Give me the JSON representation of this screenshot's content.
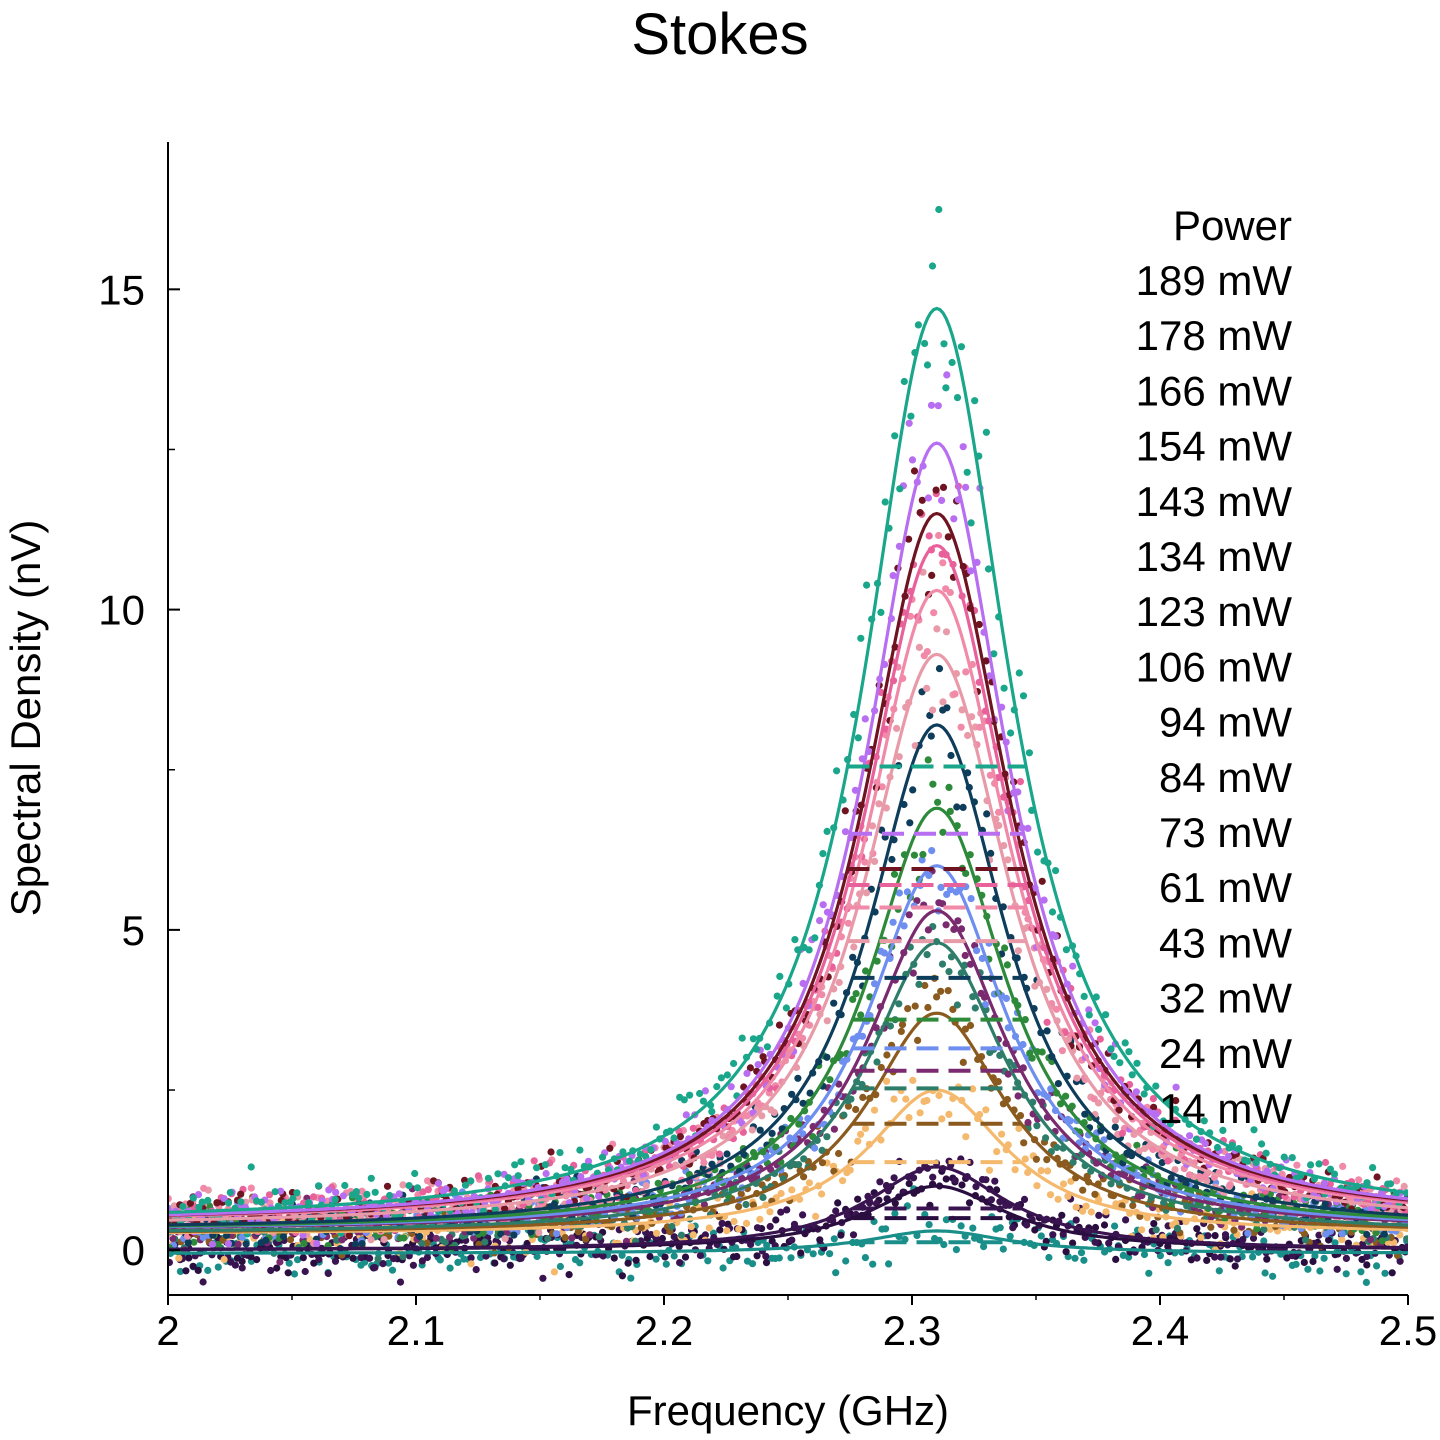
{
  "chart_data": {
    "type": "scatter",
    "title": "Stokes",
    "xlabel": "Frequency (GHz)",
    "ylabel": "Spectral Density (nV)",
    "xlim": [
      2.0,
      2.5
    ],
    "ylim": [
      -0.7,
      17.3
    ],
    "x_ticks": [
      2.0,
      2.1,
      2.2,
      2.3,
      2.4,
      2.5
    ],
    "x_tick_labels": [
      "2",
      "2.1",
      "2.2",
      "2.3",
      "2.4",
      "2.5"
    ],
    "y_ticks": [
      0,
      5,
      10,
      15
    ],
    "y_tick_labels": [
      "0",
      "5",
      "10",
      "15"
    ],
    "grid": false,
    "legend_title": "Power",
    "legend_position": "top-right",
    "center_ghz": 2.31,
    "series": [
      {
        "name": "189 mW",
        "peak": 14.7,
        "baseline": 0.4,
        "width_ghz": 0.036,
        "color": "#1aa68a"
      },
      {
        "name": "178 mW",
        "peak": 12.6,
        "baseline": 0.4,
        "width_ghz": 0.035,
        "color": "#b86ef0"
      },
      {
        "name": "166 mW",
        "peak": 11.5,
        "baseline": 0.4,
        "width_ghz": 0.036,
        "color": "#6e1420"
      },
      {
        "name": "154 mW",
        "peak": 11.0,
        "baseline": 0.4,
        "width_ghz": 0.036,
        "color": "#e8619a"
      },
      {
        "name": "143 mW",
        "peak": 10.3,
        "baseline": 0.4,
        "width_ghz": 0.036,
        "color": "#f08aa8"
      },
      {
        "name": "134 mW",
        "peak": 9.3,
        "baseline": 0.35,
        "width_ghz": 0.036,
        "color": "#e89aa8"
      },
      {
        "name": "123 mW",
        "peak": 8.2,
        "baseline": 0.3,
        "width_ghz": 0.034,
        "color": "#0e3d5c"
      },
      {
        "name": "106 mW",
        "peak": 6.9,
        "baseline": 0.3,
        "width_ghz": 0.034,
        "color": "#2d8a3a"
      },
      {
        "name": "94 mW",
        "peak": 6.0,
        "baseline": 0.3,
        "width_ghz": 0.034,
        "color": "#6e8ef0"
      },
      {
        "name": "84 mW",
        "peak": 5.3,
        "baseline": 0.3,
        "width_ghz": 0.034,
        "color": "#7a2a6e"
      },
      {
        "name": "73 mW",
        "peak": 4.8,
        "baseline": 0.25,
        "width_ghz": 0.034,
        "color": "#2e7d6a"
      },
      {
        "name": "61 mW",
        "peak": 3.7,
        "baseline": 0.25,
        "width_ghz": 0.034,
        "color": "#8a5a1e"
      },
      {
        "name": "43 mW",
        "peak": 2.5,
        "baseline": 0.25,
        "width_ghz": 0.034,
        "color": "#f5b96e"
      },
      {
        "name": "32 mW",
        "peak": 1.3,
        "baseline": 0.0,
        "width_ghz": 0.034,
        "color": "#3a1450"
      },
      {
        "name": "24 mW",
        "peak": 1.0,
        "baseline": 0.0,
        "width_ghz": 0.034,
        "color": "#2a0e40"
      },
      {
        "name": "14 mW",
        "peak": 0.3,
        "baseline": -0.05,
        "width_ghz": 0.034,
        "color": "#1a8f8a"
      }
    ]
  }
}
